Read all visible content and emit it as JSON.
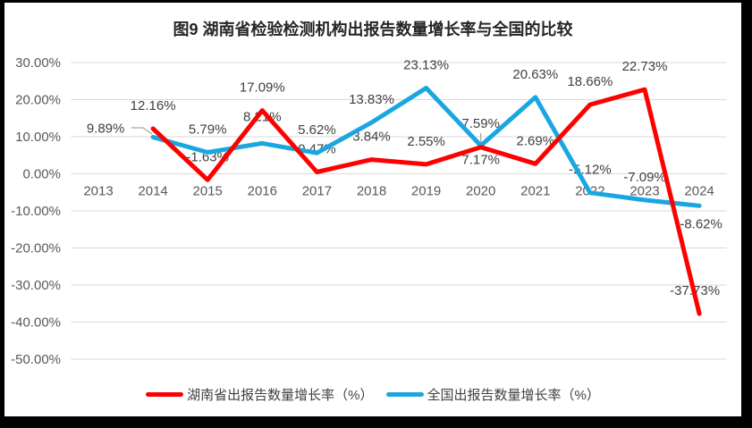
{
  "frame": {
    "border_color": "#000000",
    "panel_color": "#FFFFFF"
  },
  "chart_data": {
    "type": "line",
    "title": "图9 湖南省检验检测机构出报告数量增长率与全国的比较",
    "categories": [
      "2013",
      "2014",
      "2015",
      "2016",
      "2017",
      "2018",
      "2019",
      "2020",
      "2021",
      "2022",
      "2023",
      "2024"
    ],
    "series": [
      {
        "name": "湖南省出报告数量增长率（%）",
        "color": "#FF0000",
        "values": [
          null,
          12.16,
          -1.63,
          17.09,
          0.47,
          3.84,
          2.55,
          7.17,
          2.69,
          18.66,
          22.73,
          -37.73
        ]
      },
      {
        "name": "全国出报告数量增长率（%）",
        "color": "#1AA7E1",
        "values": [
          null,
          9.89,
          5.79,
          8.21,
          5.62,
          13.83,
          23.13,
          7.59,
          20.63,
          -5.12,
          -7.09,
          -8.62
        ]
      }
    ],
    "y_ticks": [
      "30.00%",
      "20.00%",
      "10.00%",
      "0.00%",
      "-10.00%",
      "-20.00%",
      "-30.00%",
      "-40.00%",
      "-50.00%"
    ],
    "ylim": [
      -50,
      30
    ],
    "xlabel": "",
    "ylabel": "",
    "grid": true,
    "data_labels": true,
    "label_format": "0.00%",
    "legend_position": "bottom",
    "colors": {
      "gridline": "#D9D9D9",
      "axis_text": "#595959",
      "data_label": "#404040",
      "leader_line": "#A6A6A6",
      "title_text": "#262626"
    }
  }
}
